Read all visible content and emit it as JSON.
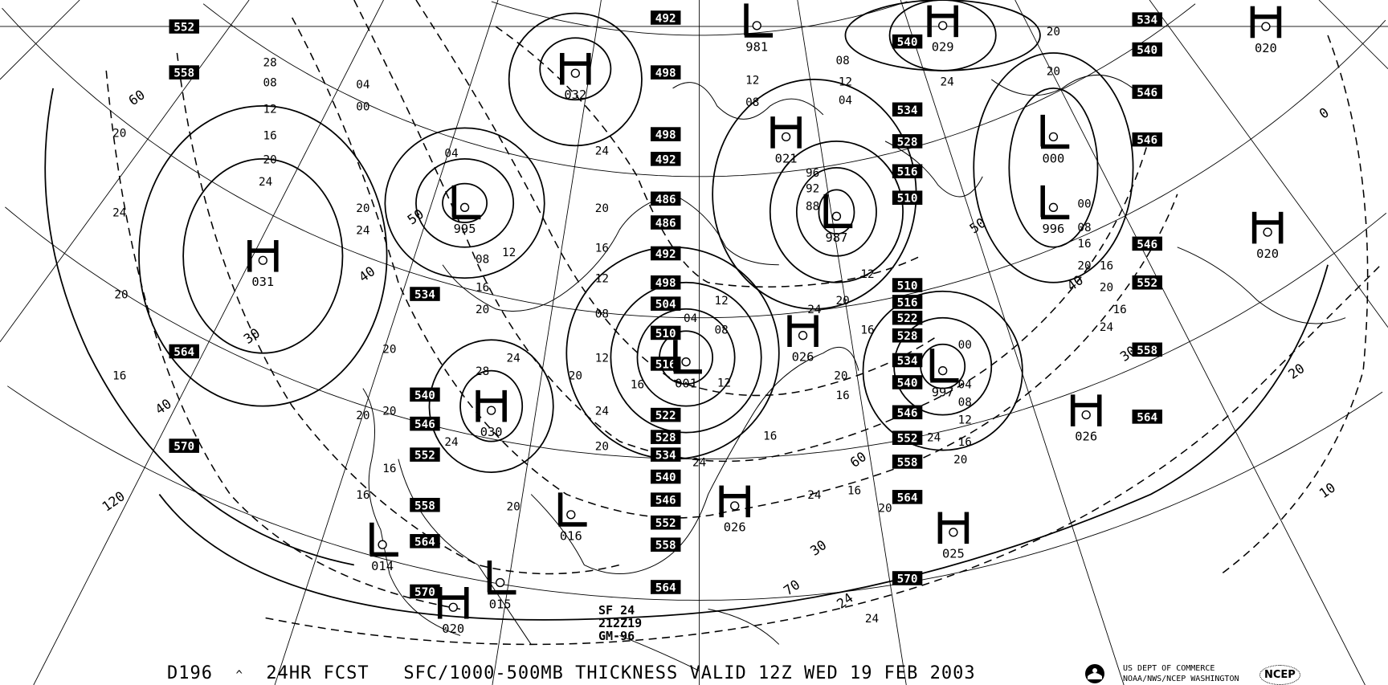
{
  "caption": {
    "product": "D196",
    "caret": "^",
    "forecast": "24HR FCST",
    "title": "SFC/1000-500MB THICKNESS VALID 12Z WED 19 FEB 2003"
  },
  "agency": {
    "line1": "US DEPT OF COMMERCE",
    "line2": "NOAA/NWS/NCEP WASHINGTON",
    "ncep_logo": "NCEP",
    "noaa_logo": "noaa-logo-icon"
  },
  "stamp": {
    "line1": "SF 24",
    "line2": "212Z19",
    "line3": "GM-96"
  },
  "pressure_centers": [
    {
      "type": "H",
      "value": "031"
    },
    {
      "type": "L",
      "value": "995"
    },
    {
      "type": "H",
      "value": "032"
    },
    {
      "type": "L",
      "value": "981"
    },
    {
      "type": "H",
      "value": "029"
    },
    {
      "type": "H",
      "value": "020"
    },
    {
      "type": "H",
      "value": "021"
    },
    {
      "type": "L",
      "value": "987"
    },
    {
      "type": "L",
      "value": "000"
    },
    {
      "type": "L",
      "value": "996"
    },
    {
      "type": "H",
      "value": "020"
    },
    {
      "type": "L",
      "value": "001"
    },
    {
      "type": "H",
      "value": "026"
    },
    {
      "type": "L",
      "value": "997"
    },
    {
      "type": "H",
      "value": "030"
    },
    {
      "type": "H",
      "value": "026"
    },
    {
      "type": "H",
      "value": "025"
    },
    {
      "type": "L",
      "value": "016"
    },
    {
      "type": "H",
      "value": "026"
    },
    {
      "type": "L",
      "value": "014"
    },
    {
      "type": "L",
      "value": "015"
    },
    {
      "type": "H",
      "value": "020"
    }
  ],
  "thickness_labels": [
    "552",
    "558",
    "534",
    "564",
    "570",
    "540",
    "546",
    "552",
    "558",
    "564",
    "570",
    "492",
    "498",
    "498",
    "492",
    "486",
    "486",
    "492",
    "498",
    "504",
    "510",
    "516",
    "522",
    "528",
    "534",
    "540",
    "546",
    "552",
    "558",
    "564",
    "540",
    "534",
    "528",
    "516",
    "510",
    "510",
    "516",
    "522",
    "528",
    "534",
    "540",
    "546",
    "552",
    "558",
    "564",
    "570",
    "534",
    "540",
    "546",
    "546",
    "546",
    "552",
    "558",
    "564"
  ],
  "isobar_labels": [
    "20",
    "24",
    "28",
    "20",
    "16",
    "12",
    "08",
    "04",
    "00",
    "20",
    "24",
    "16",
    "20",
    "24",
    "20",
    "16",
    "12",
    "08",
    "04",
    "24",
    "20",
    "16",
    "12",
    "08",
    "20",
    "24",
    "12",
    "16",
    "20",
    "24",
    "28",
    "16",
    "20",
    "20",
    "24",
    "16",
    "20",
    "12",
    "08",
    "04",
    "16",
    "12",
    "24",
    "20",
    "16",
    "08",
    "12",
    "24",
    "20",
    "16",
    "12",
    "08",
    "04",
    "00",
    "96",
    "92",
    "88",
    "20",
    "24",
    "16",
    "20",
    "12",
    "04",
    "08",
    "16",
    "20",
    "24",
    "16",
    "12",
    "08",
    "00",
    "16",
    "20",
    "24",
    "20",
    "16",
    "20",
    "24",
    "24",
    "20"
  ],
  "thickness_line_labels": [
    "60",
    "40",
    "30",
    "120",
    "40",
    "50",
    "60",
    "50",
    "30",
    "70",
    "24",
    "30",
    "40",
    "20",
    "10",
    "0"
  ]
}
